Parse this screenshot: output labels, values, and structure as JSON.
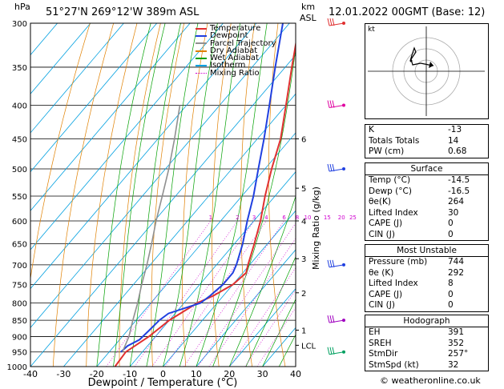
{
  "header": {
    "hpa_label": "hPa",
    "location": "51°27'N  269°12'W  389m  ASL",
    "km_label": "km",
    "asl_label": "ASL",
    "datetime": "12.01.2022  00GMT  (Base: 12)"
  },
  "legend": {
    "items": [
      {
        "label": "Temperature",
        "color": "#e03030",
        "style": "solid"
      },
      {
        "label": "Dewpoint",
        "color": "#2040e0",
        "style": "solid"
      },
      {
        "label": "Parcel Trajectory",
        "color": "#909090",
        "style": "solid"
      },
      {
        "label": "Dry Adiabat",
        "color": "#e08000",
        "style": "solid"
      },
      {
        "label": "Wet Adiabat",
        "color": "#00a000",
        "style": "solid"
      },
      {
        "label": "Isotherm",
        "color": "#00a0e0",
        "style": "solid"
      },
      {
        "label": "Mixing Ratio",
        "color": "#d000d0",
        "style": "dotted"
      }
    ]
  },
  "chart_data": {
    "type": "line",
    "title": "",
    "xlabel": "Dewpoint / Temperature (°C)",
    "ylabel": "hPa",
    "y2label": "Mixing Ratio (g/kg)",
    "xlim": [
      -40,
      40
    ],
    "ylim": [
      1000,
      300
    ],
    "pressure_ticks": [
      "300",
      "350",
      "400",
      "450",
      "500",
      "550",
      "600",
      "650",
      "700",
      "750",
      "800",
      "850",
      "900",
      "950",
      "1000"
    ],
    "temp_ticks": [
      "-40",
      "-30",
      "-20",
      "-10",
      "0",
      "10",
      "20",
      "30",
      "40"
    ],
    "km_ticks": [
      {
        "label": "6",
        "p": 450
      },
      {
        "label": "5",
        "p": 535
      },
      {
        "label": "4",
        "p": 600
      },
      {
        "label": "3",
        "p": 685
      },
      {
        "label": "2",
        "p": 772
      },
      {
        "label": "1",
        "p": 880
      },
      {
        "label": "LCL",
        "p": 928
      }
    ],
    "mixing_ratio_labels": [
      "1",
      "2",
      "3",
      "4",
      "6",
      "8",
      "10",
      "15",
      "20",
      "25"
    ],
    "series": [
      {
        "name": "Temperature",
        "color": "#e03030",
        "points": [
          [
            1000,
            -14.5
          ],
          [
            950,
            -15
          ],
          [
            900,
            -12
          ],
          [
            850,
            -10
          ],
          [
            800,
            -6
          ],
          [
            780,
            -3
          ],
          [
            750,
            0
          ],
          [
            720,
            1
          ],
          [
            700,
            -0.5
          ],
          [
            650,
            -4
          ],
          [
            600,
            -8
          ],
          [
            550,
            -13
          ],
          [
            500,
            -18
          ],
          [
            450,
            -23
          ],
          [
            400,
            -30
          ],
          [
            350,
            -38
          ],
          [
            300,
            -47
          ]
        ]
      },
      {
        "name": "Dewpoint",
        "color": "#2040e0",
        "points": [
          [
            950,
            -16.5
          ],
          [
            930,
            -16
          ],
          [
            910,
            -14
          ],
          [
            880,
            -13.5
          ],
          [
            850,
            -13
          ],
          [
            830,
            -12
          ],
          [
            800,
            -5
          ],
          [
            780,
            -4
          ],
          [
            750,
            -3
          ],
          [
            720,
            -3
          ],
          [
            700,
            -4
          ],
          [
            650,
            -7.5
          ],
          [
            600,
            -12
          ],
          [
            550,
            -16.5
          ],
          [
            500,
            -22
          ],
          [
            450,
            -28
          ],
          [
            400,
            -35
          ],
          [
            350,
            -43
          ],
          [
            300,
            -52
          ]
        ]
      },
      {
        "name": "Parcel Trajectory",
        "color": "#909090",
        "points": [
          [
            950,
            -16
          ],
          [
            900,
            -18
          ],
          [
            850,
            -21
          ],
          [
            800,
            -24
          ],
          [
            750,
            -27.5
          ],
          [
            700,
            -31
          ],
          [
            650,
            -35
          ],
          [
            600,
            -39.5
          ],
          [
            550,
            -44
          ],
          [
            500,
            -49
          ],
          [
            450,
            -55
          ],
          [
            400,
            -62
          ]
        ]
      }
    ]
  },
  "hodograph": {
    "label": "kt"
  },
  "indices": {
    "k_label": "K",
    "k": "-13",
    "tt_label": "Totals Totals",
    "tt": "14",
    "pw_label": "PW (cm)",
    "pw": "0.68"
  },
  "surface": {
    "title": "Surface",
    "rows": [
      {
        "label": "Temp (°C)",
        "value": "-14.5"
      },
      {
        "label": "Dewp (°C)",
        "value": "-16.5"
      },
      {
        "label": "θe(K)",
        "value": "264"
      },
      {
        "label": "Lifted Index",
        "value": "30"
      },
      {
        "label": "CAPE (J)",
        "value": "0"
      },
      {
        "label": "CIN (J)",
        "value": "0"
      }
    ]
  },
  "most_unstable": {
    "title": "Most Unstable",
    "rows": [
      {
        "label": "Pressure (mb)",
        "value": "744"
      },
      {
        "label": "θe (K)",
        "value": "292"
      },
      {
        "label": "Lifted Index",
        "value": "8"
      },
      {
        "label": "CAPE (J)",
        "value": "0"
      },
      {
        "label": "CIN (J)",
        "value": "0"
      }
    ]
  },
  "hodograph_table": {
    "title": "Hodograph",
    "rows": [
      {
        "label": "EH",
        "value": "391"
      },
      {
        "label": "SREH",
        "value": "352"
      },
      {
        "label": "StmDir",
        "value": "257°"
      },
      {
        "label": "StmSpd (kt)",
        "value": "32"
      }
    ]
  },
  "footer": {
    "copyright": "© weatheronline.co.uk"
  }
}
